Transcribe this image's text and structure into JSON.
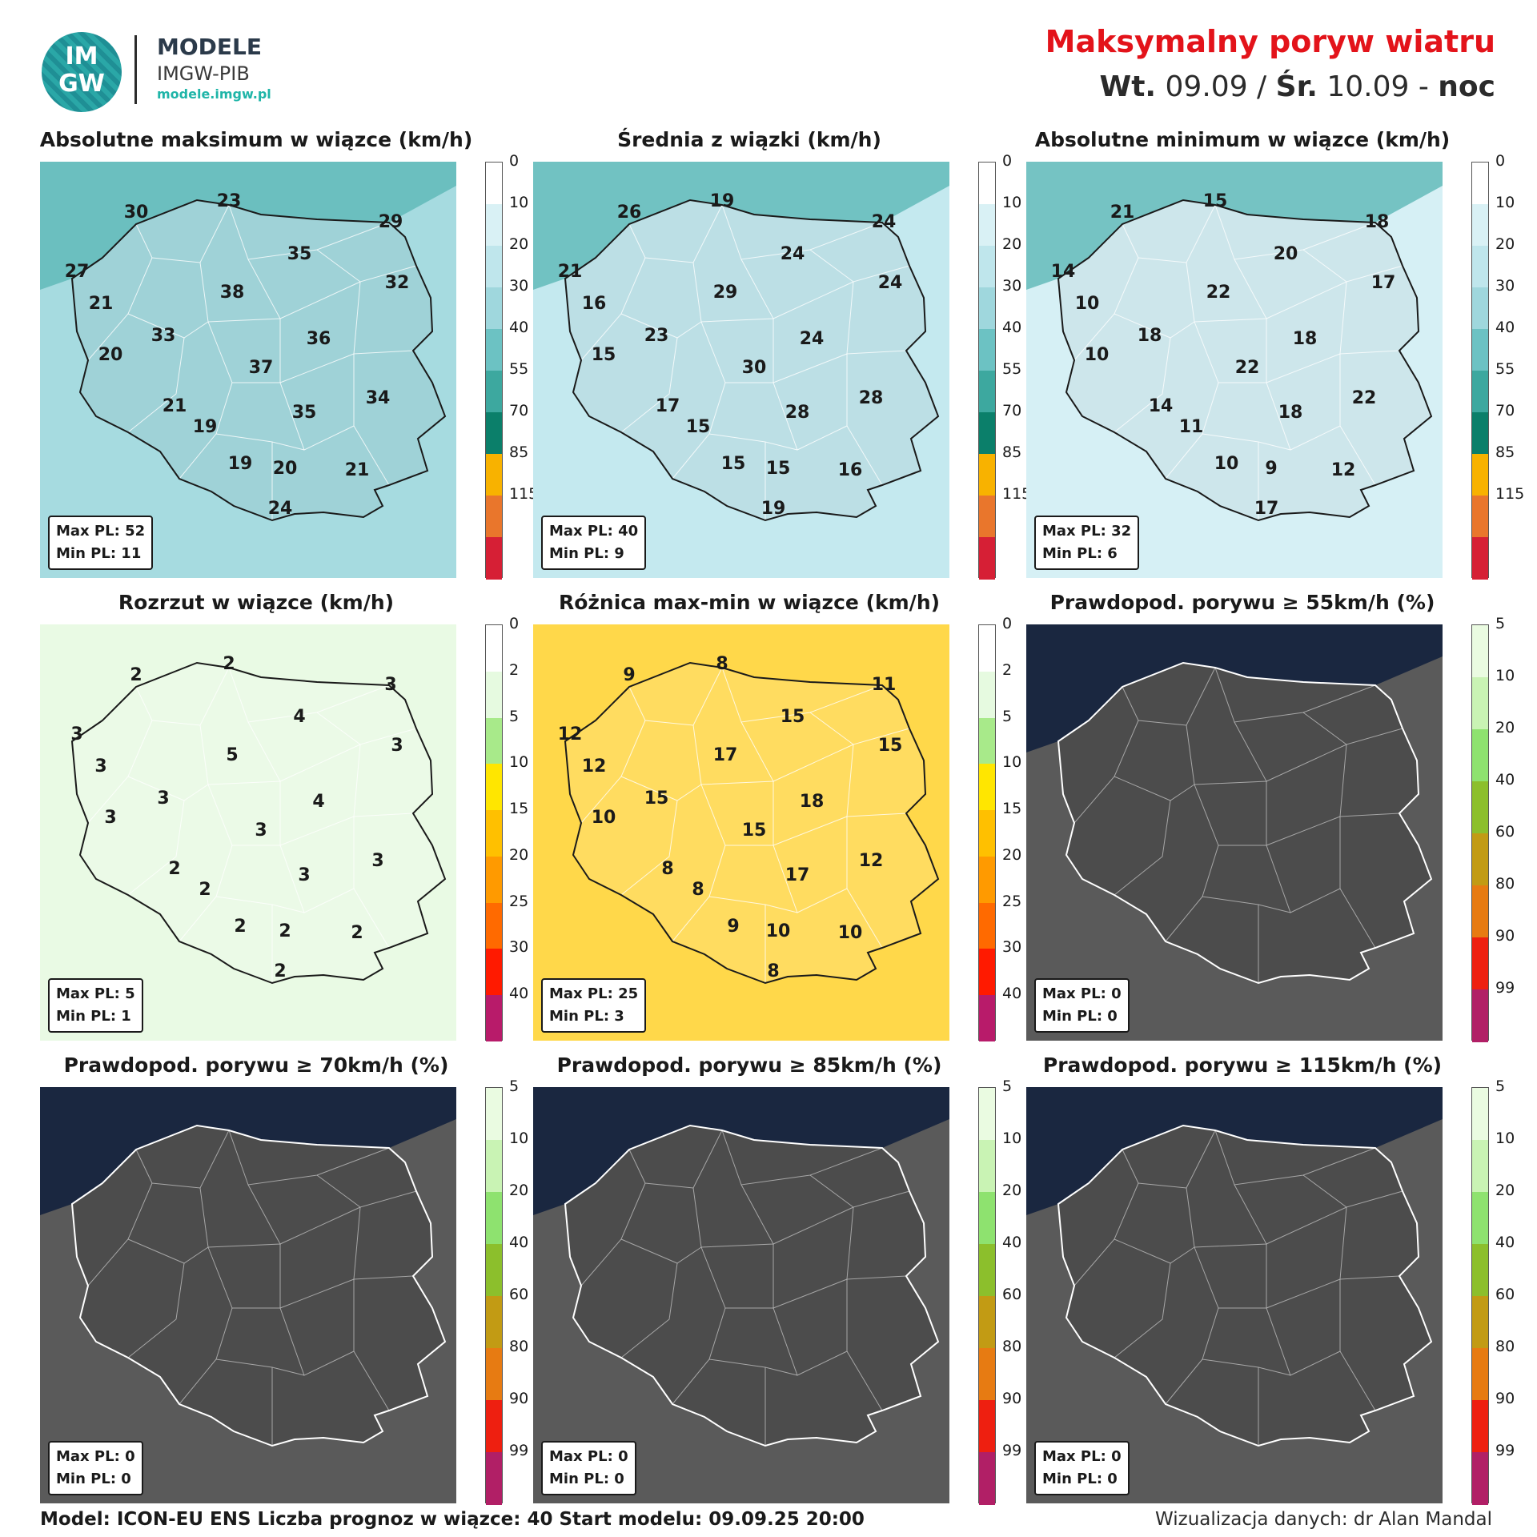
{
  "header": {
    "logo": {
      "letters_top": "IM",
      "letters_bottom": "GW",
      "name": "MODELE",
      "org": "IMGW-PIB",
      "url": "modele.imgw.pl"
    },
    "title": "Maksymalny poryw wiatru",
    "subtitle": {
      "day1": "Wt.",
      "date1": "09.09",
      "sep": "/",
      "day2": "Śr.",
      "date2": "10.09",
      "dash": "-",
      "period": "noc"
    }
  },
  "scales": {
    "wind": {
      "ticks": [
        "0",
        "10",
        "20",
        "30",
        "40",
        "55",
        "70",
        "85",
        "115"
      ],
      "colors": [
        "#ffffff",
        "#d9f1f5",
        "#bfe6ec",
        "#9fd7dd",
        "#6cc2c3",
        "#3da89f",
        "#0b7f6a",
        "#f8b200",
        "#e9762c",
        "#d61f35"
      ]
    },
    "spread": {
      "ticks": [
        "0",
        "2",
        "5",
        "10",
        "15",
        "20",
        "25",
        "30",
        "40"
      ],
      "colors": [
        "#ffffff",
        "#e6fae0",
        "#a8ea8a",
        "#ffe600",
        "#ffc000",
        "#ff9a00",
        "#ff6a00",
        "#ff1a00",
        "#b81b6a"
      ]
    },
    "prob": {
      "ticks": [
        "5",
        "10",
        "20",
        "40",
        "60",
        "80",
        "90",
        "99"
      ],
      "colors": [
        "#eafbe1",
        "#c9f3b4",
        "#8ee26f",
        "#8cbf2c",
        "#c29b14",
        "#e77b12",
        "#ee1f10",
        "#b11f66"
      ]
    }
  },
  "panels": [
    {
      "title": "Absolutne maksimum w wiązce (km/h)",
      "scale": "wind",
      "bg": "#a6dbe0",
      "max": "Max PL: 52",
      "min": "Min PL: 11",
      "values": [
        "30",
        "23",
        "29",
        "27",
        "35",
        "32",
        "21",
        "38",
        "33",
        "36",
        "20",
        "37",
        "34",
        "21",
        "35",
        "19",
        "19",
        "20",
        "21",
        "24"
      ]
    },
    {
      "title": "Średnia z wiązki (km/h)",
      "scale": "wind",
      "bg": "#c4e9ef",
      "max": "Max PL: 40",
      "min": "Min PL: 9",
      "values": [
        "26",
        "19",
        "24",
        "21",
        "24",
        "24",
        "16",
        "29",
        "23",
        "24",
        "15",
        "30",
        "28",
        "17",
        "28",
        "15",
        "15",
        "15",
        "16",
        "19"
      ]
    },
    {
      "title": "Absolutne minimum w wiązce (km/h)",
      "scale": "wind",
      "bg": "#d6f0f5",
      "max": "Max PL: 32",
      "min": "Min PL: 6",
      "values": [
        "21",
        "15",
        "18",
        "14",
        "20",
        "17",
        "10",
        "22",
        "18",
        "18",
        "10",
        "22",
        "22",
        "14",
        "18",
        "11",
        "10",
        "9",
        "12",
        "17"
      ]
    },
    {
      "title": "Rozrzut w wiązce (km/h)",
      "scale": "spread",
      "bg": "#e9fae4",
      "max": "Max PL: 5",
      "min": "Min PL: 1",
      "values": [
        "2",
        "2",
        "3",
        "3",
        "4",
        "3",
        "3",
        "5",
        "3",
        "4",
        "3",
        "3",
        "3",
        "2",
        "3",
        "2",
        "2",
        "2",
        "2",
        "2"
      ]
    },
    {
      "title": "Różnica max-min w wiązce (km/h)",
      "scale": "spread",
      "bg": "#ffd84a",
      "max": "Max PL: 25",
      "min": "Min PL: 3",
      "values": [
        "9",
        "8",
        "11",
        "12",
        "15",
        "15",
        "12",
        "17",
        "15",
        "18",
        "10",
        "15",
        "12",
        "8",
        "17",
        "8",
        "9",
        "10",
        "10",
        "8"
      ]
    },
    {
      "title": "Prawdopod. porywu ≥ 55km/h (%)",
      "scale": "prob",
      "bg": "#5a5a5a",
      "max": "Max PL: 0",
      "min": "Min PL: 0",
      "values": []
    },
    {
      "title": "Prawdopod. porywu ≥ 70km/h (%)",
      "scale": "prob",
      "bg": "#5a5a5a",
      "max": "Max PL: 0",
      "min": "Min PL: 0",
      "values": []
    },
    {
      "title": "Prawdopod. porywu ≥ 85km/h (%)",
      "scale": "prob",
      "bg": "#5a5a5a",
      "max": "Max PL: 0",
      "min": "Min PL: 0",
      "values": []
    },
    {
      "title": "Prawdopod. porywu ≥ 115km/h (%)",
      "scale": "prob",
      "bg": "#5a5a5a",
      "max": "Max PL: 0",
      "min": "Min PL: 0",
      "values": []
    }
  ],
  "footer": {
    "model": "Model: ICON-EU ENS   Liczba prognoz w wiązce: 40   Start modelu: 09.09.25  20:00",
    "credit": "Wizualizacja danych: dr Alan Mandal"
  }
}
